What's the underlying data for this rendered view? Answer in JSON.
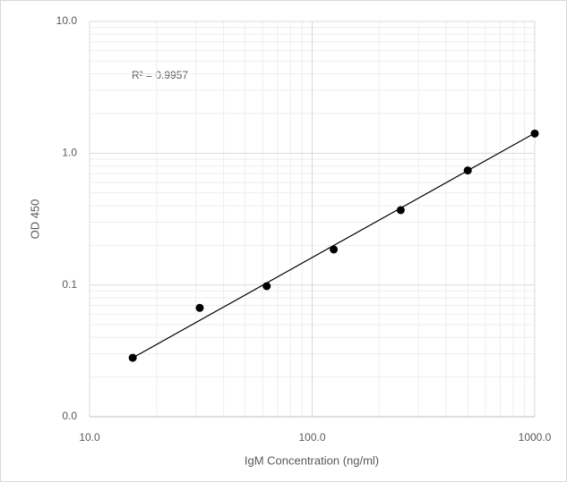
{
  "chart_data": {
    "type": "scatter",
    "x_label": "IgM Concentration (ng/ml)",
    "y_label": "OD 450",
    "annotation": "R² = 0.9957",
    "x": [
      15.625,
      31.25,
      62.5,
      125,
      250,
      500,
      1000
    ],
    "values": [
      0.028,
      0.067,
      0.098,
      0.186,
      0.37,
      0.74,
      1.41
    ],
    "color": "#000000",
    "trendline": {
      "x": [
        15.625,
        1000
      ],
      "values": [
        0.028,
        1.42
      ]
    },
    "xlim": [
      10,
      1000
    ],
    "ylim": [
      0.01,
      10
    ],
    "xticks": [
      {
        "value": 10,
        "label": "10.0"
      },
      {
        "value": 100,
        "label": "100.0"
      },
      {
        "value": 1000,
        "label": "1000.0"
      }
    ],
    "yticks": [
      {
        "value": 0.01,
        "label": "0.0"
      },
      {
        "value": 0.1,
        "label": "0.1"
      },
      {
        "value": 1,
        "label": "1.0"
      },
      {
        "value": 10,
        "label": "10.0"
      }
    ],
    "xscale": "log",
    "yscale": "log",
    "grid": true,
    "minor_grid": true
  }
}
